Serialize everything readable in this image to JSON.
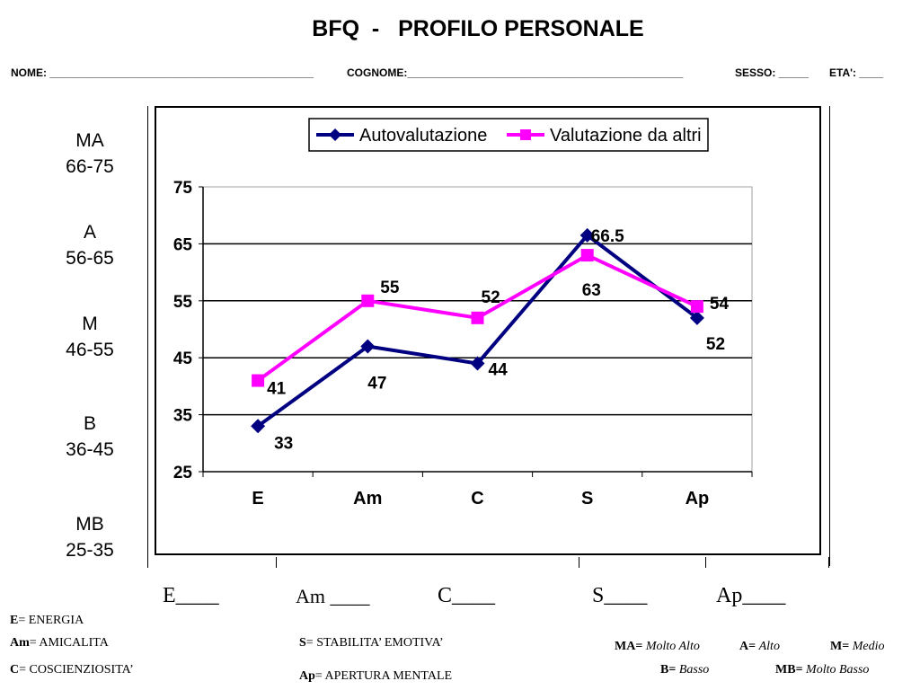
{
  "header": {
    "title": "BFQ  -   PROFILO PERSONALE",
    "nome": "NOME: ____________________________________________",
    "cognome": "COGNOME:______________________________________________",
    "sesso": "SESSO: _____",
    "eta": "ETA': ____"
  },
  "bands": [
    {
      "code": "MA",
      "range": "66-75"
    },
    {
      "code": "A",
      "range": "56-65"
    },
    {
      "code": "M",
      "range": "46-55"
    },
    {
      "code": "B",
      "range": "36-45"
    },
    {
      "code": "MB",
      "range": "25-35"
    }
  ],
  "chart_data": {
    "type": "line",
    "categories": [
      "E",
      "Am",
      "C",
      "S",
      "Ap"
    ],
    "ylim": [
      25,
      75
    ],
    "yticks": [
      "25",
      "35",
      "45",
      "55",
      "65",
      "75"
    ],
    "grid": true,
    "legend_position": "top",
    "series": [
      {
        "name": "Autovalutazione",
        "color": "#000080",
        "marker": "diamond",
        "values": [
          33,
          47,
          44,
          66.5,
          52
        ],
        "labels": [
          "33",
          "47",
          "44",
          "66.5",
          "52"
        ]
      },
      {
        "name": "Valutazione da altri",
        "color": "#ff00ff",
        "marker": "square",
        "values": [
          41,
          55,
          52,
          63,
          54
        ],
        "labels": [
          "41",
          "55",
          "52",
          "63",
          "54"
        ]
      }
    ]
  },
  "fill_in": {
    "e": "E____",
    "am": "Am ____",
    "c": "C____",
    "s": "S____",
    "ap": "Ap____"
  },
  "legend_left": [
    {
      "abbr": "E",
      "text": "= ENERGIA"
    },
    {
      "abbr": "Am",
      "text": "= AMICALITA"
    },
    {
      "abbr": "C",
      "text": "= COSCIENZIOSITA’"
    }
  ],
  "legend_mid": [
    {
      "abbr": "S",
      "text": "= STABILITA’ EMOTIVA’"
    },
    {
      "abbr": "Ap",
      "text": "= APERTURA MENTALE"
    }
  ],
  "legend_right": [
    {
      "abbr": "MA",
      "text": "Molto Alto"
    },
    {
      "abbr": "A",
      "text": "Alto"
    },
    {
      "abbr": "M",
      "text": "Medio"
    },
    {
      "abbr": "B",
      "text": "Basso"
    },
    {
      "abbr": "MB",
      "text": "Molto Basso"
    }
  ]
}
